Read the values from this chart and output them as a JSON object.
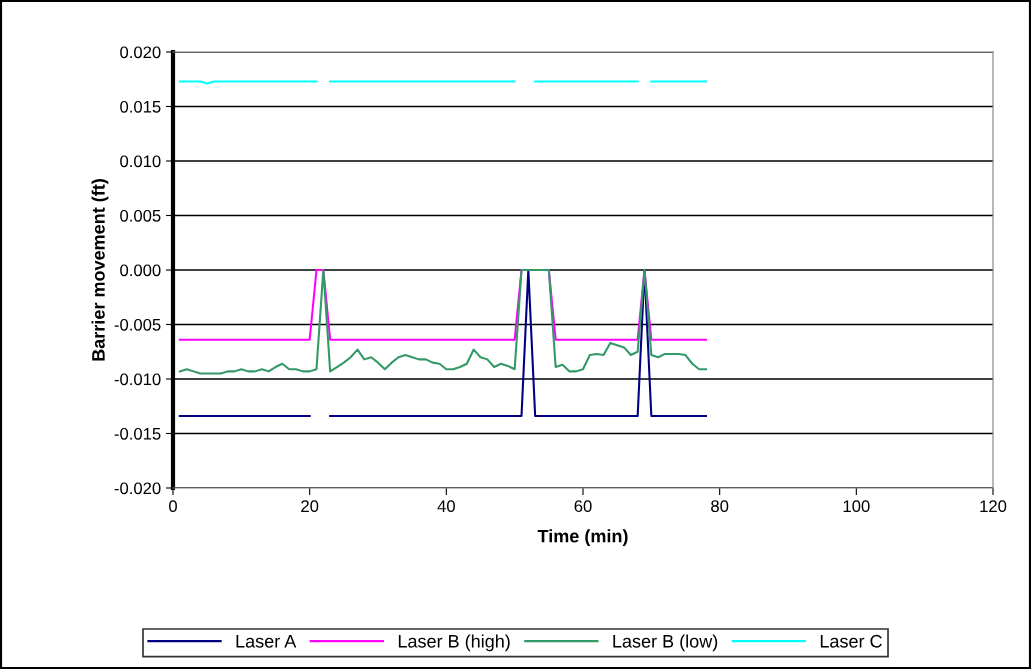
{
  "chart_data": {
    "type": "line",
    "xlabel": "Time (min)",
    "ylabel": "Barrier movement (ft)",
    "x": [
      1,
      2,
      3,
      4,
      5,
      6,
      7,
      8,
      9,
      10,
      11,
      12,
      13,
      14,
      15,
      16,
      17,
      18,
      19,
      20,
      21,
      22,
      23,
      24,
      25,
      26,
      27,
      28,
      29,
      30,
      31,
      32,
      33,
      34,
      35,
      36,
      37,
      38,
      39,
      40,
      41,
      42,
      43,
      44,
      45,
      46,
      47,
      48,
      49,
      50,
      51,
      52,
      53,
      54,
      55,
      56,
      57,
      58,
      59,
      60,
      61,
      62,
      63,
      64,
      65,
      66,
      67,
      68,
      69,
      70,
      71,
      72,
      73,
      74,
      75,
      76,
      77,
      78
    ],
    "series": [
      {
        "name": "Laser A",
        "color": "#000080",
        "values": [
          -0.0134,
          -0.0134,
          -0.0134,
          -0.0134,
          -0.0134,
          -0.0134,
          -0.0134,
          -0.0134,
          -0.0134,
          -0.0134,
          -0.0134,
          -0.0134,
          -0.0134,
          -0.0134,
          -0.0134,
          -0.0134,
          -0.0134,
          -0.0134,
          -0.0134,
          -0.0134,
          null,
          null,
          -0.0134,
          -0.0134,
          -0.0134,
          -0.0134,
          -0.0134,
          -0.0134,
          -0.0134,
          -0.0134,
          -0.0134,
          -0.0134,
          -0.0134,
          -0.0134,
          -0.0134,
          -0.0134,
          -0.0134,
          -0.0134,
          -0.0134,
          -0.0134,
          -0.0134,
          -0.0134,
          -0.0134,
          -0.0134,
          -0.0134,
          -0.0134,
          -0.0134,
          -0.0134,
          -0.0134,
          -0.0134,
          -0.0134,
          0.0,
          -0.0134,
          -0.0134,
          -0.0134,
          -0.0134,
          -0.0134,
          -0.0134,
          -0.0134,
          -0.0134,
          -0.0134,
          -0.0134,
          -0.0134,
          -0.0134,
          -0.0134,
          -0.0134,
          -0.0134,
          -0.0134,
          0.0,
          -0.0134,
          -0.0134,
          -0.0134,
          -0.0134,
          -0.0134,
          -0.0134,
          -0.0134,
          -0.0134,
          -0.0134
        ]
      },
      {
        "name": "Laser B (high)",
        "color": "#ff00ff",
        "values": [
          -0.0064,
          -0.0064,
          -0.0064,
          -0.0064,
          -0.0064,
          -0.0064,
          -0.0064,
          -0.0064,
          -0.0064,
          -0.0064,
          -0.0064,
          -0.0064,
          -0.0064,
          -0.0064,
          -0.0064,
          -0.0064,
          -0.0064,
          -0.0064,
          -0.0064,
          -0.0064,
          0.0,
          0.0,
          -0.0064,
          -0.0064,
          -0.0064,
          -0.0064,
          -0.0064,
          -0.0064,
          -0.0064,
          -0.0064,
          -0.0064,
          -0.0064,
          -0.0064,
          -0.0064,
          -0.0064,
          -0.0064,
          -0.0064,
          -0.0064,
          -0.0064,
          -0.0064,
          -0.0064,
          -0.0064,
          -0.0064,
          -0.0064,
          -0.0064,
          -0.0064,
          -0.0064,
          -0.0064,
          -0.0064,
          -0.0064,
          0.0,
          0.0,
          0.0,
          0.0,
          0.0,
          -0.0064,
          -0.0064,
          -0.0064,
          -0.0064,
          -0.0064,
          -0.0064,
          -0.0064,
          -0.0064,
          -0.0064,
          -0.0064,
          -0.0064,
          -0.0064,
          -0.0064,
          0.0,
          -0.0064,
          -0.0064,
          -0.0064,
          -0.0064,
          -0.0064,
          -0.0064,
          -0.0064,
          -0.0064,
          -0.0064
        ]
      },
      {
        "name": "Laser B (low)",
        "color": "#339966",
        "values": [
          -0.0093,
          -0.0091,
          -0.0093,
          -0.0095,
          -0.0095,
          -0.0095,
          -0.0095,
          -0.0093,
          -0.0093,
          -0.0091,
          -0.0093,
          -0.0093,
          -0.0091,
          -0.0093,
          -0.0089,
          -0.0086,
          -0.0091,
          -0.0091,
          -0.0093,
          -0.0093,
          -0.0091,
          0.0,
          -0.0093,
          -0.0089,
          -0.0085,
          -0.008,
          -0.0073,
          -0.0082,
          -0.008,
          -0.0085,
          -0.0091,
          -0.0085,
          -0.008,
          -0.0078,
          -0.008,
          -0.0082,
          -0.0082,
          -0.0085,
          -0.0086,
          -0.0091,
          -0.0091,
          -0.0089,
          -0.0086,
          -0.0073,
          -0.008,
          -0.0082,
          -0.0089,
          -0.0086,
          -0.0088,
          -0.0091,
          0.0,
          0.0,
          0.0,
          0.0,
          0.0,
          -0.0089,
          -0.0087,
          -0.0093,
          -0.0093,
          -0.0091,
          -0.0078,
          -0.0077,
          -0.0078,
          -0.0067,
          -0.0069,
          -0.0071,
          -0.0078,
          -0.0075,
          0.0,
          -0.0078,
          -0.008,
          -0.0077,
          -0.0077,
          -0.0077,
          -0.0078,
          -0.0086,
          -0.0091,
          -0.0091
        ]
      },
      {
        "name": "Laser C",
        "color": "#00ffff",
        "values": [
          0.0173,
          0.0173,
          0.0173,
          0.0173,
          0.0171,
          0.0173,
          0.0173,
          0.0173,
          0.0173,
          0.0173,
          0.0173,
          0.0173,
          0.0173,
          0.0173,
          0.0173,
          0.0173,
          0.0173,
          0.0173,
          0.0173,
          0.0173,
          0.0173,
          null,
          0.0173,
          0.0173,
          0.0173,
          0.0173,
          0.0173,
          0.0173,
          0.0173,
          0.0173,
          0.0173,
          0.0173,
          0.0173,
          0.0173,
          0.0173,
          0.0173,
          0.0173,
          0.0173,
          0.0173,
          0.0173,
          0.0173,
          0.0173,
          0.0173,
          0.0173,
          0.0173,
          0.0173,
          0.0173,
          0.0173,
          0.0173,
          0.0173,
          null,
          null,
          0.0173,
          0.0173,
          0.0173,
          0.0173,
          0.0173,
          0.0173,
          0.0173,
          0.0173,
          0.0173,
          0.0173,
          0.0173,
          0.0173,
          0.0173,
          0.0173,
          0.0173,
          0.0173,
          null,
          0.0173,
          0.0173,
          0.0173,
          0.0173,
          0.0173,
          0.0173,
          0.0173,
          0.0173,
          0.0173
        ]
      }
    ],
    "xlim": [
      0,
      120
    ],
    "xticks": [
      0,
      20,
      40,
      60,
      80,
      100,
      120
    ],
    "ylim": [
      -0.02,
      0.02
    ],
    "yticks": [
      {
        "value": -0.02,
        "label": "-0.020"
      },
      {
        "value": -0.015,
        "label": "-0.015"
      },
      {
        "value": -0.01,
        "label": "-0.010"
      },
      {
        "value": -0.005,
        "label": "-0.005"
      },
      {
        "value": 0,
        "label": "0.000"
      },
      {
        "value": 0.005,
        "label": "0.005"
      },
      {
        "value": 0.01,
        "label": "0.010"
      },
      {
        "value": 0.015,
        "label": "0.015"
      },
      {
        "value": 0.02,
        "label": "0.020"
      }
    ],
    "grid": "y",
    "legend": "bottom",
    "marker": "none",
    "line_style": "solid"
  }
}
